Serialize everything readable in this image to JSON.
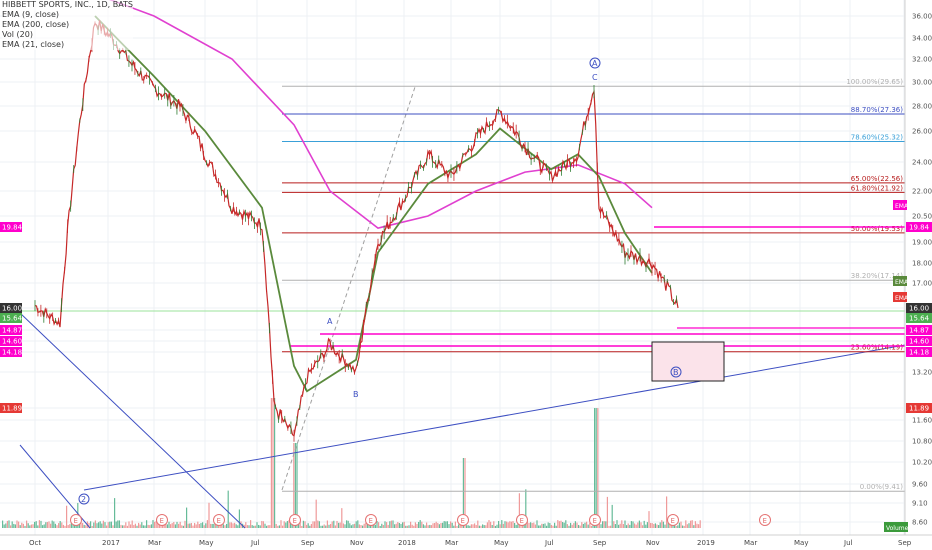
{
  "legend": {
    "symbol": "HIBBETT SPORTS, INC., 1D, BATS",
    "ema9": "EMA (9, close)",
    "ema200": "EMA (200, close)",
    "vol": "Vol (20)",
    "ema21": "EMA (21, close)"
  },
  "colors": {
    "price": "#c62828",
    "ema9": "#e53935",
    "ema21": "#5a8a3c",
    "ema200": "#e040d0",
    "trend": "#3d4fc2",
    "fib_blue": "#3d4fc2",
    "fib_cyan": "#3aa0d8",
    "fib_red": "#b71c1c",
    "fib_gray": "#b0b0b0",
    "magenta": "#ff00cc",
    "green_line": "#4caf50",
    "vol_up": "#66bb99",
    "vol_down": "#ef9a9a"
  },
  "chart_data": {
    "type": "line",
    "yaxis_ticks": [
      "36.00",
      "34.00",
      "32.00",
      "30.00",
      "28.00",
      "26.00",
      "24.00",
      "22.00",
      "20.50",
      "19.00",
      "18.00",
      "17.00",
      "16.00",
      "14.87",
      "14.60",
      "14.18",
      "13.20",
      "11.89",
      "11.60",
      "10.80",
      "10.20",
      "9.60",
      "9.10",
      "8.60"
    ],
    "xaxis_ticks": [
      "Oct",
      "2017",
      "Mar",
      "May",
      "Jul",
      "Sep",
      "Nov",
      "2018",
      "Mar",
      "May",
      "Jul",
      "Sep",
      "Nov",
      "2019",
      "Mar",
      "May",
      "Jul",
      "Sep"
    ],
    "price_badges": [
      {
        "value": "19.84",
        "color": "#ff00cc"
      },
      {
        "value": "16.00",
        "color": "#333333"
      },
      {
        "value": "15.64",
        "color": "#4caf50"
      },
      {
        "value": "14.87",
        "color": "#ff00cc"
      },
      {
        "value": "14.60",
        "color": "#ff00cc"
      },
      {
        "value": "14.18",
        "color": "#ff00cc"
      },
      {
        "value": "11.89",
        "color": "#e53935"
      }
    ],
    "ema_tags": [
      {
        "text": "EMA",
        "color": "#ff00cc"
      },
      {
        "text": "EMA",
        "color": "#5a8a3c"
      },
      {
        "text": "EMA",
        "color": "#e53935"
      }
    ],
    "fib_levels": [
      {
        "label": "100.00%(29.65)",
        "value": 29.65,
        "color": "#b0b0b0"
      },
      {
        "label": "88.70%(27.36)",
        "value": 27.36,
        "color": "#3d4fc2"
      },
      {
        "label": "78.60%(25.32)",
        "value": 25.32,
        "color": "#3aa0d8"
      },
      {
        "label": "65.00%(22.56)",
        "value": 22.56,
        "color": "#b71c1c"
      },
      {
        "label": "61.80%(21.92)",
        "value": 21.92,
        "color": "#b71c1c"
      },
      {
        "label": "50.00%(19.53)",
        "value": 19.53,
        "color": "#b71c1c"
      },
      {
        "label": "38.20%(17.14)",
        "value": 17.14,
        "color": "#b0b0b0"
      },
      {
        "label": "23.60%(14.19)",
        "value": 14.19,
        "color": "#b71c1c"
      },
      {
        "label": "0.00%(9.41)",
        "value": 9.41,
        "color": "#b0b0b0"
      }
    ],
    "wave_labels": [
      "A",
      "B",
      "C",
      "2"
    ],
    "circled_labels": [
      "A",
      "B"
    ],
    "event_marker": "E",
    "volume_label": "Volume",
    "price_series": [
      [
        "2016-10",
        16.1
      ],
      [
        "2016-11",
        15.2
      ],
      [
        "2016-12",
        35.5
      ],
      [
        "2017-01",
        34.0
      ],
      [
        "2017-02",
        31.5
      ],
      [
        "2017-03",
        29.5
      ],
      [
        "2017-04",
        28.0
      ],
      [
        "2017-05",
        24.5
      ],
      [
        "2017-06",
        21.0
      ],
      [
        "2017-07",
        20.0
      ],
      [
        "2017-07b",
        12.0
      ],
      [
        "2017-08",
        11.0
      ],
      [
        "2017-09",
        13.0
      ],
      [
        "2017-10",
        14.5
      ],
      [
        "2017-11",
        13.2
      ],
      [
        "2017-12",
        19.0
      ],
      [
        "2018-01",
        21.5
      ],
      [
        "2018-02",
        24.5
      ],
      [
        "2018-03",
        23.0
      ],
      [
        "2018-04",
        25.5
      ],
      [
        "2018-05",
        27.5
      ],
      [
        "2018-06",
        25.0
      ],
      [
        "2018-07",
        23.0
      ],
      [
        "2018-08",
        24.5
      ],
      [
        "2018-08b",
        29.6
      ],
      [
        "2018-09",
        21.0
      ],
      [
        "2018-10",
        18.5
      ],
      [
        "2018-11",
        18.0
      ],
      [
        "2018-11b",
        16.0
      ]
    ],
    "ema200_series": [
      [
        "2016-12",
        38.0
      ],
      [
        "2017-03",
        36.0
      ],
      [
        "2017-06",
        32.0
      ],
      [
        "2017-08",
        26.5
      ],
      [
        "2017-10",
        22.0
      ],
      [
        "2017-12",
        19.8
      ],
      [
        "2018-02",
        20.5
      ],
      [
        "2018-04",
        22.0
      ],
      [
        "2018-06",
        23.3
      ],
      [
        "2018-08",
        23.8
      ],
      [
        "2018-10",
        22.5
      ],
      [
        "2018-11",
        21.0
      ]
    ],
    "ema21_series": [
      [
        "2016-12",
        36.0
      ],
      [
        "2017-03",
        30.5
      ],
      [
        "2017-05",
        26.0
      ],
      [
        "2017-07",
        21.0
      ],
      [
        "2017-08",
        13.5
      ],
      [
        "2017-09",
        12.5
      ],
      [
        "2017-11",
        13.8
      ],
      [
        "2017-12",
        18.5
      ],
      [
        "2018-02",
        22.5
      ],
      [
        "2018-04",
        24.5
      ],
      [
        "2018-05",
        26.2
      ],
      [
        "2018-07",
        23.5
      ],
      [
        "2018-08",
        24.5
      ],
      [
        "2018-09",
        23.0
      ],
      [
        "2018-10",
        19.5
      ],
      [
        "2018-11",
        17.5
      ]
    ]
  }
}
